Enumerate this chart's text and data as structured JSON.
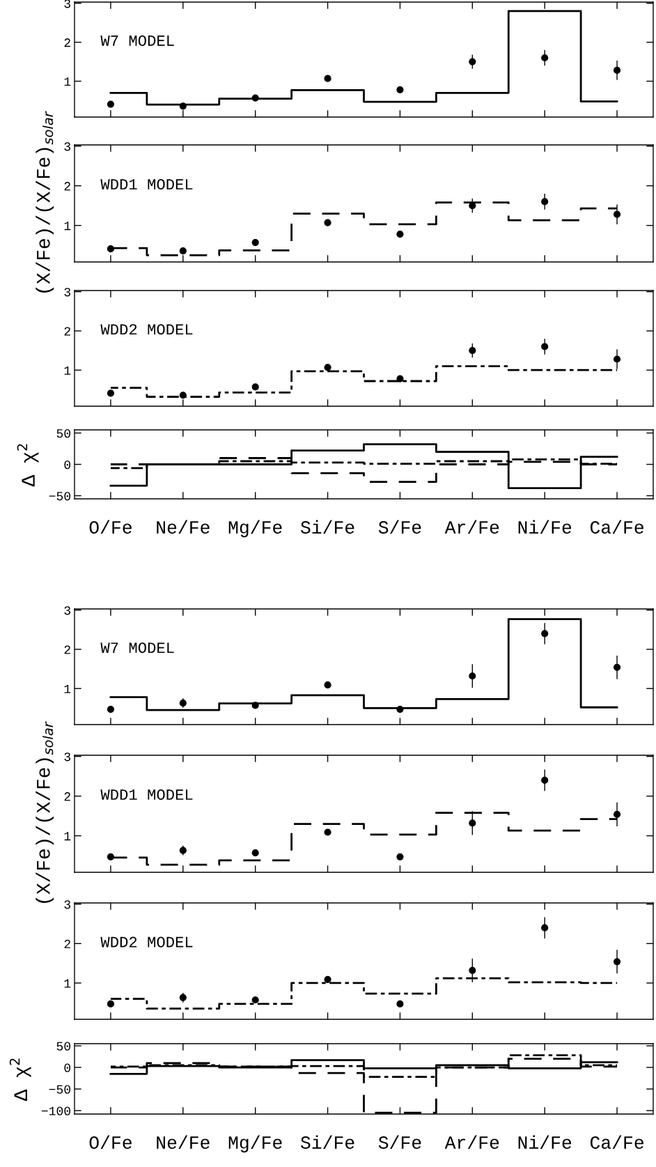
{
  "chart_data": [
    {
      "type": "step",
      "categories": [
        null,
        null,
        null,
        null,
        null,
        null,
        null,
        null
      ],
      "ylim": [
        0.08,
        3.03
      ],
      "yticks": [
        1,
        2,
        3
      ],
      "tick_labels": "y",
      "annotations": [
        "W7 MODEL"
      ],
      "series": [
        {
          "color": "#000000",
          "line_style": "solid",
          "values": [
            0.7,
            0.4,
            0.55,
            0.77,
            0.47,
            0.7,
            2.8,
            0.48
          ]
        },
        {
          "type": "scatter",
          "color": "#000000",
          "marker": "circle",
          "values": [
            0.41,
            0.36,
            0.57,
            1.07,
            0.78,
            1.5,
            1.6,
            1.28
          ],
          "errors": [
            null,
            0.08,
            null,
            null,
            null,
            0.18,
            0.2,
            0.25
          ]
        }
      ]
    },
    {
      "type": "step",
      "categories": [
        null,
        null,
        null,
        null,
        null,
        null,
        null,
        null
      ],
      "ylim": [
        0.08,
        3.03
      ],
      "yticks": [
        1,
        2,
        3
      ],
      "tick_labels": "y",
      "ylabel": "(X/Fe)/(X/Fe)$_{solar}$",
      "annotations": [
        "WDD1 MODEL"
      ],
      "series": [
        {
          "color": "#000000",
          "line_style": "dashed",
          "values": [
            0.43,
            0.25,
            0.37,
            1.3,
            1.03,
            1.58,
            1.13,
            1.43
          ]
        },
        {
          "type": "scatter",
          "color": "#000000",
          "marker": "circle",
          "values": [
            0.41,
            0.36,
            0.57,
            1.07,
            0.78,
            1.5,
            1.6,
            1.28
          ],
          "errors": [
            null,
            0.08,
            null,
            null,
            null,
            0.18,
            0.2,
            0.25
          ]
        }
      ]
    },
    {
      "type": "step",
      "categories": [
        null,
        null,
        null,
        null,
        null,
        null,
        null,
        null
      ],
      "ylim": [
        0.08,
        3.03
      ],
      "yticks": [
        1,
        2,
        3
      ],
      "tick_labels": "y",
      "annotations": [
        "WDD2 MODEL"
      ],
      "series": [
        {
          "color": "#000000",
          "line_style": "dashdot",
          "values": [
            0.55,
            0.32,
            0.43,
            0.97,
            0.72,
            1.1,
            1.0,
            1.0
          ]
        },
        {
          "type": "scatter",
          "color": "#000000",
          "marker": "circle",
          "values": [
            0.41,
            0.36,
            0.57,
            1.07,
            0.78,
            1.5,
            1.6,
            1.28
          ],
          "errors": [
            null,
            0.08,
            null,
            null,
            null,
            0.18,
            0.2,
            0.25
          ]
        }
      ]
    },
    {
      "type": "step",
      "categories": [
        "O/Fe",
        "Ne/Fe",
        "Mg/Fe",
        "Si/Fe",
        "S/Fe",
        "Ar/Fe",
        "Ni/Fe",
        "Ca/Fe"
      ],
      "ylim": [
        -55,
        55
      ],
      "yticks": [
        -50,
        0,
        50
      ],
      "ylabel": "Δ χ$^{2}$",
      "series": [
        {
          "color": "#000000",
          "line_style": "solid",
          "values": [
            -34,
            0,
            0,
            22,
            32,
            20,
            -38,
            12
          ]
        },
        {
          "color": "#000000",
          "line_style": "dashed",
          "values": [
            0,
            0,
            10,
            -14,
            -28,
            0,
            4,
            0
          ]
        },
        {
          "color": "#000000",
          "line_style": "dashdot",
          "values": [
            -6,
            0,
            5,
            3,
            1,
            5,
            8,
            1
          ]
        }
      ]
    },
    {
      "type": "step",
      "categories": [
        null,
        null,
        null,
        null,
        null,
        null,
        null,
        null
      ],
      "ylim": [
        0.08,
        3.03
      ],
      "yticks": [
        1,
        2,
        3
      ],
      "tick_labels": "y",
      "annotations": [
        "W7 MODEL"
      ],
      "series": [
        {
          "color": "#000000",
          "line_style": "solid",
          "values": [
            0.78,
            0.45,
            0.62,
            0.83,
            0.5,
            0.73,
            2.77,
            0.52
          ]
        },
        {
          "type": "scatter",
          "color": "#000000",
          "marker": "circle",
          "values": [
            0.47,
            0.63,
            0.57,
            1.09,
            0.47,
            1.32,
            2.4,
            1.54
          ],
          "errors": [
            null,
            0.12,
            0.08,
            null,
            null,
            0.3,
            0.27,
            0.3
          ]
        }
      ]
    },
    {
      "type": "step",
      "categories": [
        null,
        null,
        null,
        null,
        null,
        null,
        null,
        null
      ],
      "ylim": [
        0.08,
        3.03
      ],
      "yticks": [
        1,
        2,
        3
      ],
      "tick_labels": "y",
      "ylabel": "(X/Fe)/(X/Fe)$_{solar}$",
      "annotations": [
        "WDD1 MODEL"
      ],
      "series": [
        {
          "color": "#000000",
          "line_style": "dashed",
          "values": [
            0.45,
            0.27,
            0.38,
            1.3,
            1.03,
            1.58,
            1.13,
            1.42
          ]
        },
        {
          "type": "scatter",
          "color": "#000000",
          "marker": "circle",
          "values": [
            0.47,
            0.63,
            0.57,
            1.09,
            0.47,
            1.32,
            2.4,
            1.54
          ],
          "errors": [
            null,
            0.12,
            0.08,
            null,
            null,
            0.3,
            0.27,
            0.3
          ]
        }
      ]
    },
    {
      "type": "step",
      "categories": [
        null,
        null,
        null,
        null,
        null,
        null,
        null,
        null
      ],
      "ylim": [
        0.08,
        3.03
      ],
      "yticks": [
        1,
        2,
        3
      ],
      "tick_labels": "y",
      "annotations": [
        "WDD2 MODEL"
      ],
      "series": [
        {
          "color": "#000000",
          "line_style": "dashdot",
          "values": [
            0.6,
            0.35,
            0.47,
            1.0,
            0.73,
            1.12,
            1.02,
            1.0
          ]
        },
        {
          "type": "scatter",
          "color": "#000000",
          "marker": "circle",
          "values": [
            0.47,
            0.63,
            0.57,
            1.09,
            0.47,
            1.32,
            2.4,
            1.54
          ],
          "errors": [
            null,
            0.12,
            0.08,
            null,
            null,
            0.3,
            0.27,
            0.3
          ]
        }
      ]
    },
    {
      "type": "step",
      "categories": [
        "O/Fe",
        "Ne/Fe",
        "Mg/Fe",
        "Si/Fe",
        "S/Fe",
        "Ar/Fe",
        "Ni/Fe",
        "Ca/Fe"
      ],
      "ylim": [
        -108,
        55
      ],
      "yticks": [
        -100,
        -50,
        0,
        50
      ],
      "ylabel": "Δ χ$^{2}$",
      "series": [
        {
          "color": "#000000",
          "line_style": "solid",
          "values": [
            -15,
            3,
            0,
            17,
            -2,
            5,
            -2,
            12
          ]
        },
        {
          "color": "#000000",
          "line_style": "dashed",
          "values": [
            0,
            10,
            2,
            -13,
            -105,
            0,
            20,
            2
          ]
        },
        {
          "color": "#000000",
          "line_style": "dashdot",
          "values": [
            2,
            5,
            2,
            3,
            -22,
            0,
            28,
            5
          ]
        }
      ]
    }
  ]
}
